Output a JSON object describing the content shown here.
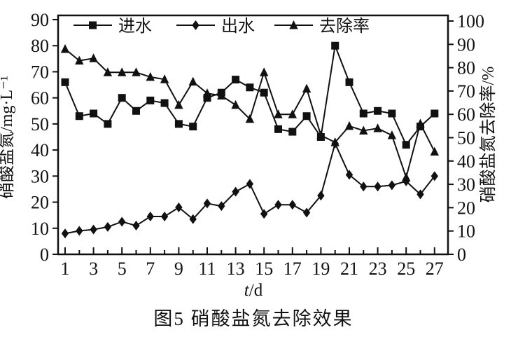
{
  "figure": {
    "caption": "图5 硝酸盐氮去除效果"
  },
  "chart_data": {
    "type": "line",
    "title": "图5 硝酸盐氮去除效果",
    "xlabel": "t/d",
    "xlabel_var": "t",
    "xlabel_unit": "/d",
    "ylabel_left": "硝酸盐氮/mg·L⁻¹",
    "ylabel_right": "硝酸盐氮去除率/%",
    "xlim": [
      1,
      27
    ],
    "ylim_left": [
      0,
      90
    ],
    "ylim_right": [
      0,
      100
    ],
    "grid": false,
    "legend_position": "top-inside",
    "line_color": "#111111",
    "background": "#ffffff",
    "x": [
      1,
      2,
      3,
      4,
      5,
      6,
      7,
      8,
      9,
      10,
      11,
      12,
      13,
      14,
      15,
      16,
      17,
      18,
      19,
      20,
      21,
      22,
      23,
      24,
      25,
      26,
      27
    ],
    "xtick_labels": [
      1,
      3,
      5,
      7,
      9,
      11,
      13,
      15,
      17,
      19,
      21,
      23,
      25,
      27
    ],
    "yticks_left": [
      0,
      10,
      20,
      30,
      40,
      50,
      60,
      70,
      80,
      90
    ],
    "yticks_right": [
      0,
      10,
      20,
      30,
      40,
      50,
      60,
      70,
      80,
      90,
      100
    ],
    "series": [
      {
        "name": "进水",
        "marker": "square",
        "axis": "left",
        "unit": "mg/L",
        "values": [
          66,
          53,
          54,
          50,
          60,
          55,
          59,
          58,
          50,
          49,
          60,
          62,
          67,
          64,
          62,
          48,
          47,
          53,
          45,
          80,
          66,
          54,
          55,
          54,
          42,
          49,
          54
        ]
      },
      {
        "name": "出水",
        "marker": "diamond",
        "axis": "left",
        "unit": "mg/L",
        "values": [
          8,
          9,
          9.5,
          10.5,
          12.5,
          11,
          14.5,
          14.5,
          18,
          13.5,
          19.5,
          18.5,
          24,
          27,
          15.5,
          19,
          19,
          16,
          22.5,
          42.5,
          30.5,
          26,
          26,
          26.5,
          28,
          23,
          30
        ]
      },
      {
        "name": "去除率",
        "marker": "triangle",
        "axis": "right",
        "unit": "%",
        "values": [
          88,
          83,
          84,
          78,
          78,
          78,
          76,
          75,
          64,
          74,
          69,
          68,
          64,
          58,
          78,
          60,
          60,
          71,
          51,
          48,
          55,
          53,
          54,
          51,
          33,
          56,
          44
        ]
      }
    ]
  }
}
